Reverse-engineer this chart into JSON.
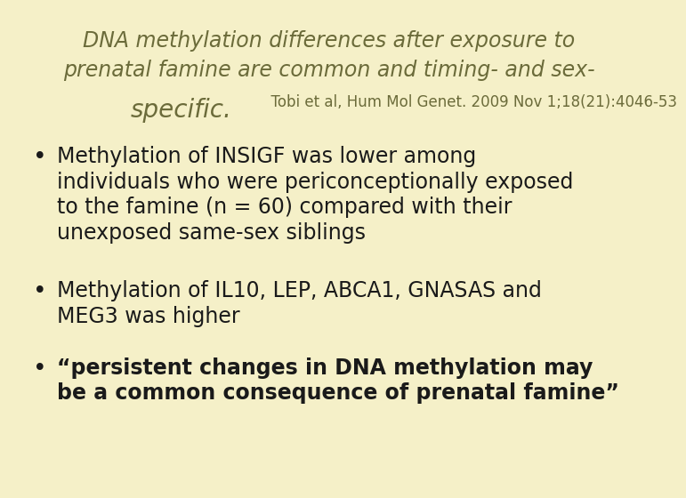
{
  "background_color": "#f5f0c8",
  "title_line1": "DNA methylation differences after exposure to",
  "title_line2": "prenatal famine are common and timing- and sex-",
  "title_line3_large": "specific.",
  "title_line3_citation": "  Tobi et al, Hum Mol Genet. 2009 Nov 1;18(21):4046-53",
  "title_color": "#6b6b3a",
  "bullet_color": "#1a1a1a",
  "title_fontsize": 17,
  "title_large3_fontsize": 20,
  "title_small3_fontsize": 12,
  "bullet_fontsize": 17,
  "bullet1": "Methylation of INSIGF was lower among\nindividuals who were periconceptionally exposed\nto the famine (n = 60) compared with their\nunexposed same-sex siblings",
  "bullet2": "Methylation of IL10, LEP, ABCA1, GNASAS and\nMEG3 was higher",
  "bullet3": "“persistent changes in DNA methylation may\nbe a common consequence of prenatal famine”"
}
